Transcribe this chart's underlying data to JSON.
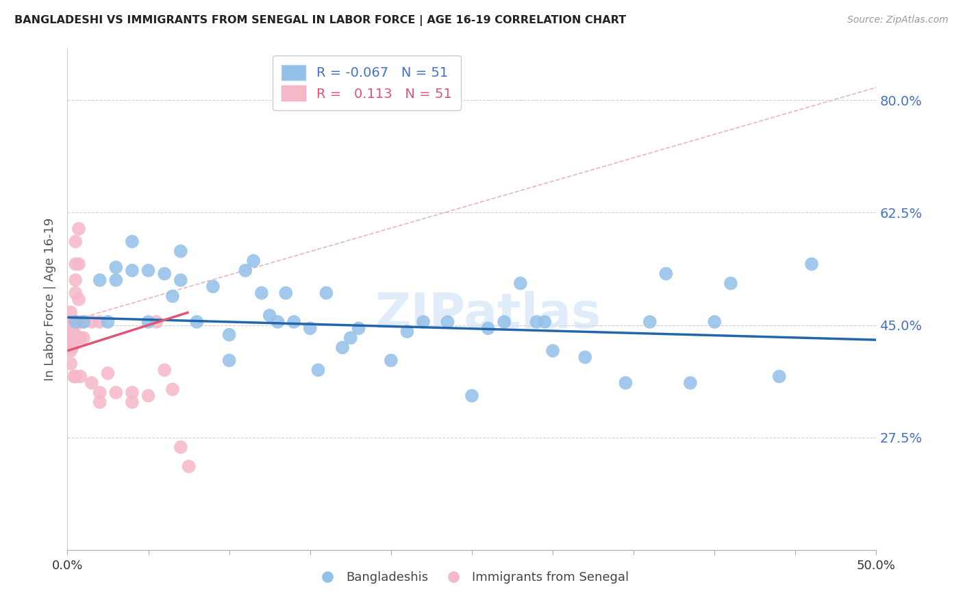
{
  "title": "BANGLADESHI VS IMMIGRANTS FROM SENEGAL IN LABOR FORCE | AGE 16-19 CORRELATION CHART",
  "source": "Source: ZipAtlas.com",
  "ylabel": "In Labor Force | Age 16-19",
  "xlim": [
    0.0,
    0.5
  ],
  "ylim": [
    0.1,
    0.88
  ],
  "yticks": [
    0.275,
    0.45,
    0.625,
    0.8
  ],
  "ytick_labels": [
    "27.5%",
    "45.0%",
    "62.5%",
    "80.0%"
  ],
  "xtick_positions": [
    0.0,
    0.05,
    0.1,
    0.15,
    0.2,
    0.25,
    0.3,
    0.35,
    0.4,
    0.45,
    0.5
  ],
  "xtick_labels_shown": {
    "0.0": "0.0%",
    "0.50": "50.0%"
  },
  "blue_color": "#92c0e8",
  "pink_color": "#f5b8c8",
  "blue_line_color": "#2166ac",
  "pink_line_color": "#e05575",
  "diag_line_color": "#e8b4c0",
  "grid_color": "#d0d0d0",
  "watermark": "ZIPatlas",
  "legend_r_blue": "-0.067",
  "legend_r_pink": "0.113",
  "legend_n": "51",
  "blue_x": [
    0.005,
    0.01,
    0.02,
    0.025,
    0.03,
    0.03,
    0.04,
    0.04,
    0.05,
    0.05,
    0.06,
    0.065,
    0.07,
    0.07,
    0.08,
    0.09,
    0.1,
    0.1,
    0.11,
    0.115,
    0.12,
    0.125,
    0.13,
    0.135,
    0.14,
    0.15,
    0.155,
    0.16,
    0.17,
    0.175,
    0.18,
    0.2,
    0.21,
    0.22,
    0.235,
    0.25,
    0.26,
    0.27,
    0.28,
    0.29,
    0.295,
    0.3,
    0.32,
    0.345,
    0.36,
    0.37,
    0.385,
    0.4,
    0.41,
    0.44,
    0.46
  ],
  "blue_y": [
    0.455,
    0.455,
    0.52,
    0.455,
    0.52,
    0.54,
    0.535,
    0.58,
    0.455,
    0.535,
    0.53,
    0.495,
    0.52,
    0.565,
    0.455,
    0.51,
    0.395,
    0.435,
    0.535,
    0.55,
    0.5,
    0.465,
    0.455,
    0.5,
    0.455,
    0.445,
    0.38,
    0.5,
    0.415,
    0.43,
    0.445,
    0.395,
    0.44,
    0.455,
    0.455,
    0.34,
    0.445,
    0.455,
    0.515,
    0.455,
    0.455,
    0.41,
    0.4,
    0.36,
    0.455,
    0.53,
    0.36,
    0.455,
    0.515,
    0.37,
    0.545
  ],
  "pink_x": [
    0.002,
    0.002,
    0.002,
    0.002,
    0.002,
    0.002,
    0.003,
    0.003,
    0.003,
    0.003,
    0.003,
    0.004,
    0.004,
    0.004,
    0.004,
    0.004,
    0.004,
    0.005,
    0.005,
    0.005,
    0.005,
    0.005,
    0.005,
    0.005,
    0.005,
    0.006,
    0.006,
    0.006,
    0.007,
    0.007,
    0.007,
    0.008,
    0.008,
    0.008,
    0.01,
    0.01,
    0.015,
    0.015,
    0.02,
    0.02,
    0.02,
    0.025,
    0.03,
    0.04,
    0.04,
    0.05,
    0.055,
    0.06,
    0.065,
    0.07,
    0.075
  ],
  "pink_y": [
    0.455,
    0.47,
    0.445,
    0.43,
    0.41,
    0.39,
    0.455,
    0.455,
    0.44,
    0.43,
    0.415,
    0.455,
    0.45,
    0.44,
    0.43,
    0.42,
    0.37,
    0.58,
    0.545,
    0.52,
    0.5,
    0.455,
    0.455,
    0.43,
    0.37,
    0.455,
    0.455,
    0.43,
    0.6,
    0.545,
    0.49,
    0.455,
    0.43,
    0.37,
    0.455,
    0.43,
    0.455,
    0.36,
    0.33,
    0.345,
    0.455,
    0.375,
    0.345,
    0.345,
    0.33,
    0.34,
    0.455,
    0.38,
    0.35,
    0.26,
    0.23
  ],
  "blue_trend": [
    0.0,
    0.5,
    0.462,
    0.427
  ],
  "pink_trend": [
    0.0,
    0.075,
    0.41,
    0.47
  ],
  "diag_line": [
    0.0,
    0.455,
    0.5,
    0.82
  ],
  "figsize": [
    14.06,
    8.92
  ],
  "dpi": 100
}
